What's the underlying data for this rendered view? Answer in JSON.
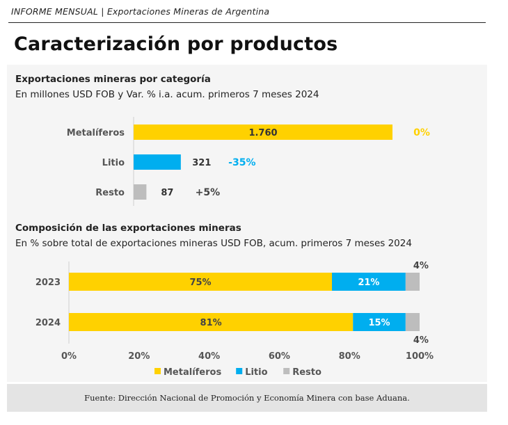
{
  "header": {
    "report": "INFORME MENSUAL |",
    "subtitle": "Exportaciones Mineras de Argentina"
  },
  "page_title": "Caracterización por productos",
  "chart_data": [
    {
      "type": "bar",
      "orientation": "horizontal",
      "title": "Exportaciones mineras por categoría",
      "subtitle": "En millones USD FOB y Var. % i.a. acum. primeros 7 meses 2024",
      "categories": [
        "Metalíferos",
        "Litio",
        "Resto"
      ],
      "values": [
        1760,
        321,
        87
      ],
      "value_labels": [
        "1.760",
        "321",
        "87"
      ],
      "variation_labels": [
        "0%",
        "-35%",
        "+5%"
      ],
      "xlim": [
        0,
        1760
      ],
      "colors": [
        "#FFD100",
        "#00AEEF",
        "#BDBDBD"
      ],
      "variation_colors": [
        "#FFD100",
        "#00AEEF",
        "#444444"
      ]
    },
    {
      "type": "bar",
      "orientation": "horizontal",
      "stacked": true,
      "title": "Composición de las exportaciones mineras",
      "subtitle": "En % sobre total de exportaciones mineras USD FOB, acum. primeros 7 meses 2024",
      "categories": [
        "2023",
        "2024"
      ],
      "series": [
        {
          "name": "Metalíferos",
          "values": [
            75,
            81
          ],
          "labels": [
            "75%",
            "81%"
          ],
          "color": "#FFD100"
        },
        {
          "name": "Litio",
          "values": [
            21,
            15
          ],
          "labels": [
            "21%",
            "15%"
          ],
          "color": "#00AEEF"
        },
        {
          "name": "Resto",
          "values": [
            4,
            4
          ],
          "labels": [
            "4%",
            "4%"
          ],
          "color": "#BDBDBD"
        }
      ],
      "xlim": [
        0,
        100
      ],
      "x_ticks": [
        0,
        20,
        40,
        60,
        80,
        100
      ],
      "x_tick_labels": [
        "0%",
        "20%",
        "40%",
        "60%",
        "80%",
        "100%"
      ],
      "legend_position": "bottom"
    }
  ],
  "footer": {
    "source": "Fuente: Dirección Nacional de Promoción y Economía Minera con base Aduana."
  }
}
